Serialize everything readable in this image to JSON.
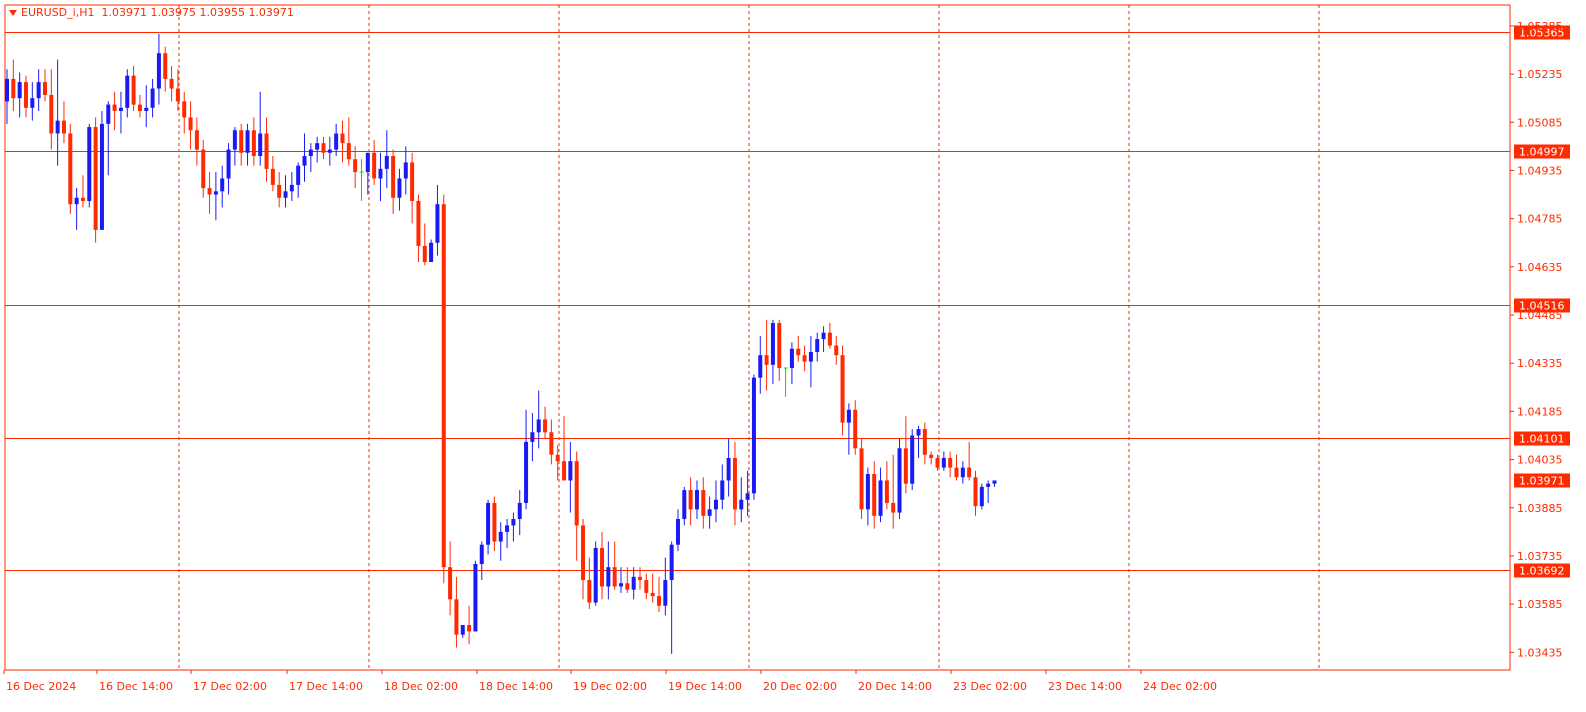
{
  "header": {
    "symbol": "EURUSD_i,H1",
    "ohlc": "1.03971 1.03975 1.03955 1.03971"
  },
  "colors": {
    "accent": "#ff2a00",
    "bull": "#1a1af5",
    "bear": "#ff2a00",
    "doji": "#00dd00",
    "background": "#ffffff"
  },
  "chart_data": {
    "type": "candlestick",
    "timeframe": "H1",
    "symbol": "EURUSD_i",
    "ylim": [
      1.0338,
      1.0545
    ],
    "y_ticks": [
      "1.05385",
      "1.05235",
      "1.05085",
      "1.04935",
      "1.04785",
      "1.04635",
      "1.04485",
      "1.04335",
      "1.04185",
      "1.04035",
      "1.03885",
      "1.03735",
      "1.03585",
      "1.03435"
    ],
    "x_ticks": [
      "16 Dec 2024",
      "16 Dec 14:00",
      "17 Dec 02:00",
      "17 Dec 14:00",
      "18 Dec 02:00",
      "18 Dec 14:00",
      "19 Dec 02:00",
      "19 Dec 14:00",
      "20 Dec 02:00",
      "20 Dec 14:00",
      "23 Dec 02:00",
      "23 Dec 14:00",
      "24 Dec 02:00"
    ],
    "horizontal_levels": [
      {
        "value": 1.05365,
        "label": "1.05365"
      },
      {
        "value": 1.04997,
        "label": "1.04997"
      },
      {
        "value": 1.04516,
        "label": "1.04516"
      },
      {
        "value": 1.04101,
        "label": "1.04101"
      },
      {
        "value": 1.03692,
        "label": "1.03692"
      }
    ],
    "current_price": {
      "value": 1.03971,
      "label": "1.03971"
    },
    "candles": [
      [
        1.0515,
        1.0525,
        1.0508,
        1.0522
      ],
      [
        1.0522,
        1.0528,
        1.0512,
        1.0516
      ],
      [
        1.0516,
        1.0524,
        1.051,
        1.0521
      ],
      [
        1.0521,
        1.0523,
        1.051,
        1.0513
      ],
      [
        1.0513,
        1.0521,
        1.0509,
        1.0516
      ],
      [
        1.0516,
        1.0525,
        1.0512,
        1.0521
      ],
      [
        1.0521,
        1.0525,
        1.0515,
        1.0517
      ],
      [
        1.0517,
        1.0525,
        1.05,
        1.0505
      ],
      [
        1.0505,
        1.0528,
        1.0495,
        1.0509
      ],
      [
        1.0509,
        1.0515,
        1.0502,
        1.0505
      ],
      [
        1.0505,
        1.0508,
        1.048,
        1.0483
      ],
      [
        1.0483,
        1.0488,
        1.0475,
        1.0485
      ],
      [
        1.0485,
        1.0492,
        1.0482,
        1.0484
      ],
      [
        1.0484,
        1.0508,
        1.0482,
        1.0507
      ],
      [
        1.0507,
        1.051,
        1.0471,
        1.0475
      ],
      [
        1.0475,
        1.0512,
        1.0475,
        1.0508
      ],
      [
        1.0508,
        1.0515,
        1.0492,
        1.0514
      ],
      [
        1.0514,
        1.0518,
        1.0506,
        1.0512
      ],
      [
        1.0512,
        1.0518,
        1.0505,
        1.0513
      ],
      [
        1.0513,
        1.0525,
        1.051,
        1.0523
      ],
      [
        1.0523,
        1.0526,
        1.0512,
        1.0514
      ],
      [
        1.0514,
        1.0517,
        1.051,
        1.0512
      ],
      [
        1.0512,
        1.052,
        1.0507,
        1.0513
      ],
      [
        1.0513,
        1.0522,
        1.051,
        1.0519
      ],
      [
        1.0519,
        1.0536,
        1.0514,
        1.053
      ],
      [
        1.053,
        1.0532,
        1.0518,
        1.0522
      ],
      [
        1.0522,
        1.0526,
        1.0515,
        1.0519
      ],
      [
        1.0519,
        1.0525,
        1.0512,
        1.0515
      ],
      [
        1.0515,
        1.0518,
        1.0505,
        1.051
      ],
      [
        1.051,
        1.0515,
        1.05,
        1.0506
      ],
      [
        1.0506,
        1.051,
        1.0495,
        1.05
      ],
      [
        1.05,
        1.0503,
        1.0485,
        1.0488
      ],
      [
        1.0488,
        1.0493,
        1.048,
        1.0486
      ],
      [
        1.0486,
        1.0493,
        1.0478,
        1.0487
      ],
      [
        1.0487,
        1.0495,
        1.0482,
        1.0491
      ],
      [
        1.0491,
        1.0502,
        1.0486,
        1.05
      ],
      [
        1.05,
        1.0507,
        1.0495,
        1.0506
      ],
      [
        1.0506,
        1.0508,
        1.0495,
        1.0499
      ],
      [
        1.0499,
        1.0508,
        1.0495,
        1.0506
      ],
      [
        1.0506,
        1.051,
        1.0495,
        1.0498
      ],
      [
        1.0498,
        1.0518,
        1.0495,
        1.0505
      ],
      [
        1.0505,
        1.051,
        1.049,
        1.0494
      ],
      [
        1.0494,
        1.0498,
        1.0487,
        1.0489
      ],
      [
        1.0489,
        1.0493,
        1.0482,
        1.0485
      ],
      [
        1.0485,
        1.0492,
        1.0482,
        1.0487
      ],
      [
        1.0487,
        1.0493,
        1.0484,
        1.0489
      ],
      [
        1.0489,
        1.0496,
        1.0485,
        1.0495
      ],
      [
        1.0495,
        1.0505,
        1.049,
        1.0498
      ],
      [
        1.0498,
        1.0502,
        1.0493,
        1.05
      ],
      [
        1.05,
        1.0504,
        1.0496,
        1.0502
      ],
      [
        1.0502,
        1.0504,
        1.0497,
        1.0499
      ],
      [
        1.0499,
        1.0504,
        1.0495,
        1.05
      ],
      [
        1.05,
        1.0508,
        1.0498,
        1.0505
      ],
      [
        1.0505,
        1.0509,
        1.0496,
        1.0502
      ],
      [
        1.0502,
        1.051,
        1.0495,
        1.0497
      ],
      [
        1.0497,
        1.0501,
        1.0488,
        1.0493
      ],
      [
        1.0493,
        1.0497,
        1.0484,
        1.0493
      ],
      [
        1.0493,
        1.0499,
        1.0486,
        1.0499
      ],
      [
        1.0499,
        1.0503,
        1.0489,
        1.0491
      ],
      [
        1.0491,
        1.0499,
        1.0484,
        1.0494
      ],
      [
        1.0494,
        1.0506,
        1.0488,
        1.0498
      ],
      [
        1.0498,
        1.05,
        1.048,
        1.0485
      ],
      [
        1.0485,
        1.0494,
        1.0481,
        1.0491
      ],
      [
        1.0491,
        1.0501,
        1.0486,
        1.0496
      ],
      [
        1.0496,
        1.0499,
        1.0477,
        1.0484
      ],
      [
        1.0484,
        1.0486,
        1.0465,
        1.047
      ],
      [
        1.047,
        1.0477,
        1.0464,
        1.0465
      ],
      [
        1.0465,
        1.0472,
        1.0465,
        1.0471
      ],
      [
        1.0471,
        1.0489,
        1.0467,
        1.0483
      ],
      [
        1.0483,
        1.0486,
        1.0365,
        1.037
      ],
      [
        1.037,
        1.0378,
        1.0355,
        1.036
      ],
      [
        1.036,
        1.0367,
        1.0345,
        1.0349
      ],
      [
        1.0349,
        1.0352,
        1.0348,
        1.0352
      ],
      [
        1.0352,
        1.0358,
        1.0346,
        1.035
      ],
      [
        1.035,
        1.0372,
        1.035,
        1.0371
      ],
      [
        1.0371,
        1.0378,
        1.0366,
        1.0377
      ],
      [
        1.0377,
        1.0391,
        1.0374,
        1.039
      ],
      [
        1.039,
        1.0392,
        1.0375,
        1.0378
      ],
      [
        1.0378,
        1.0384,
        1.0372,
        1.0381
      ],
      [
        1.0381,
        1.0385,
        1.0376,
        1.0383
      ],
      [
        1.0383,
        1.0387,
        1.0378,
        1.0385
      ],
      [
        1.0385,
        1.0394,
        1.038,
        1.039
      ],
      [
        1.039,
        1.0419,
        1.0388,
        1.0409
      ],
      [
        1.0409,
        1.0418,
        1.0403,
        1.0412
      ],
      [
        1.0412,
        1.0425,
        1.0407,
        1.0416
      ],
      [
        1.0416,
        1.042,
        1.041,
        1.0412
      ],
      [
        1.0412,
        1.0416,
        1.0402,
        1.0405
      ],
      [
        1.0405,
        1.0408,
        1.0397,
        1.0403
      ],
      [
        1.0403,
        1.0417,
        1.0397,
        1.0397
      ],
      [
        1.0397,
        1.0409,
        1.0387,
        1.0403
      ],
      [
        1.0403,
        1.0406,
        1.0372,
        1.0383
      ],
      [
        1.0383,
        1.0385,
        1.036,
        1.0366
      ],
      [
        1.0366,
        1.0373,
        1.0357,
        1.0359
      ],
      [
        1.0359,
        1.0378,
        1.0358,
        1.0376
      ],
      [
        1.0376,
        1.0381,
        1.036,
        1.0364
      ],
      [
        1.0364,
        1.0378,
        1.036,
        1.037
      ],
      [
        1.037,
        1.0378,
        1.0363,
        1.0364
      ],
      [
        1.0364,
        1.037,
        1.0362,
        1.0365
      ],
      [
        1.0365,
        1.037,
        1.0362,
        1.0363
      ],
      [
        1.0363,
        1.037,
        1.036,
        1.0367
      ],
      [
        1.0367,
        1.037,
        1.0363,
        1.0366
      ],
      [
        1.0366,
        1.0368,
        1.036,
        1.0362
      ],
      [
        1.0362,
        1.0368,
        1.0359,
        1.0361
      ],
      [
        1.0361,
        1.0367,
        1.0356,
        1.0358
      ],
      [
        1.0358,
        1.0373,
        1.0355,
        1.0366
      ],
      [
        1.0366,
        1.0378,
        1.0343,
        1.0377
      ],
      [
        1.0377,
        1.0388,
        1.0375,
        1.0385
      ],
      [
        1.0385,
        1.0395,
        1.0383,
        1.0394
      ],
      [
        1.0394,
        1.0398,
        1.0383,
        1.0388
      ],
      [
        1.0388,
        1.0397,
        1.0385,
        1.0394
      ],
      [
        1.0394,
        1.0398,
        1.0382,
        1.0386
      ],
      [
        1.0386,
        1.0392,
        1.0382,
        1.0388
      ],
      [
        1.0388,
        1.0397,
        1.0384,
        1.0391
      ],
      [
        1.0391,
        1.0402,
        1.0388,
        1.0397
      ],
      [
        1.0397,
        1.041,
        1.0392,
        1.0404
      ],
      [
        1.0404,
        1.0409,
        1.0383,
        1.0388
      ],
      [
        1.0388,
        1.0398,
        1.0384,
        1.0391
      ],
      [
        1.0391,
        1.04,
        1.0386,
        1.0393
      ],
      [
        1.0393,
        1.043,
        1.0391,
        1.0429
      ],
      [
        1.0429,
        1.0442,
        1.0424,
        1.0436
      ],
      [
        1.0436,
        1.0447,
        1.0425,
        1.0433
      ],
      [
        1.0433,
        1.0447,
        1.0427,
        1.0446
      ],
      [
        1.0446,
        1.0447,
        1.0428,
        1.0432
      ],
      [
        1.0432,
        1.0432,
        1.0423,
        1.0432
      ],
      [
        1.0432,
        1.044,
        1.0427,
        1.0438
      ],
      [
        1.0438,
        1.0442,
        1.0434,
        1.0436
      ],
      [
        1.0436,
        1.0439,
        1.0431,
        1.0434
      ],
      [
        1.0434,
        1.0442,
        1.0426,
        1.0437
      ],
      [
        1.0437,
        1.0443,
        1.0434,
        1.0441
      ],
      [
        1.0441,
        1.0445,
        1.0437,
        1.0443
      ],
      [
        1.0443,
        1.0446,
        1.0438,
        1.0439
      ],
      [
        1.0439,
        1.0442,
        1.0433,
        1.0436
      ],
      [
        1.0436,
        1.0439,
        1.0411,
        1.0415
      ],
      [
        1.0415,
        1.0421,
        1.0405,
        1.0419
      ],
      [
        1.0419,
        1.0422,
        1.0405,
        1.0407
      ],
      [
        1.0407,
        1.041,
        1.0385,
        1.0388
      ],
      [
        1.0388,
        1.0401,
        1.0383,
        1.0399
      ],
      [
        1.0399,
        1.0403,
        1.0382,
        1.0386
      ],
      [
        1.0386,
        1.0401,
        1.0384,
        1.0397
      ],
      [
        1.0397,
        1.0403,
        1.0388,
        1.039
      ],
      [
        1.039,
        1.0405,
        1.0382,
        1.0387
      ],
      [
        1.0387,
        1.041,
        1.0385,
        1.0407
      ],
      [
        1.0407,
        1.0417,
        1.0393,
        1.0396
      ],
      [
        1.0396,
        1.0413,
        1.0394,
        1.0411
      ],
      [
        1.0411,
        1.0414,
        1.0404,
        1.0413
      ],
      [
        1.0413,
        1.0415,
        1.0402,
        1.0405
      ],
      [
        1.0405,
        1.0406,
        1.0402,
        1.0404
      ],
      [
        1.0404,
        1.0405,
        1.04,
        1.0401
      ],
      [
        1.0401,
        1.0406,
        1.04,
        1.0404
      ],
      [
        1.0404,
        1.0406,
        1.0398,
        1.0401
      ],
      [
        1.0401,
        1.0405,
        1.0397,
        1.0398
      ],
      [
        1.0398,
        1.0403,
        1.0396,
        1.0401
      ],
      [
        1.0401,
        1.0409,
        1.0397,
        1.0398
      ],
      [
        1.0398,
        1.04,
        1.0386,
        1.0389
      ],
      [
        1.0389,
        1.0396,
        1.0388,
        1.0395
      ],
      [
        1.0395,
        1.0397,
        1.039,
        1.0396
      ],
      [
        1.0396,
        1.0397,
        1.0395,
        1.0397
      ]
    ],
    "title": "",
    "xlabel": "",
    "ylabel": "",
    "grid": "vertical dashed",
    "legend": "none"
  }
}
